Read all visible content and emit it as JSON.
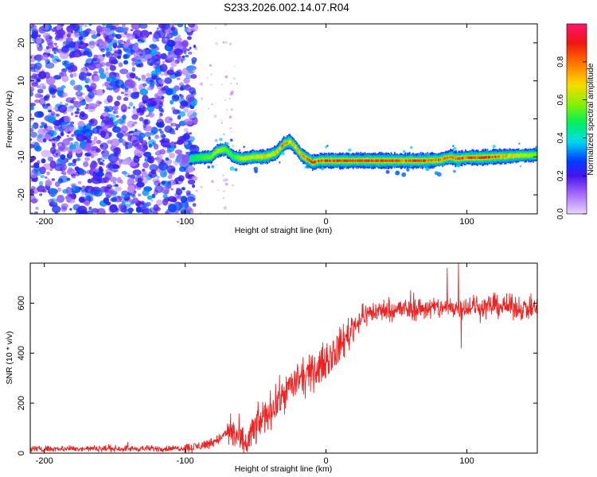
{
  "title": "S233.2026.002.14.07.R04",
  "colorbar": {
    "label": "Normalized spectral amplitude",
    "ticks": [
      0.0,
      0.2,
      0.4,
      0.6,
      0.8
    ],
    "tick_labels": [
      "0.0",
      "0.2",
      "0.4",
      "0.6",
      "0.8"
    ],
    "range": [
      0,
      1
    ],
    "colormap": "hsv-rainbow"
  },
  "chart_data": [
    {
      "type": "heatmap",
      "name": "spectrogram",
      "xlabel": "Height of straight line (km)",
      "ylabel": "Frequency (Hz)",
      "xlim": [
        -210,
        150
      ],
      "ylim": [
        -25,
        25
      ],
      "xticks": [
        -200,
        -100,
        0,
        100
      ],
      "xtick_labels": [
        "-200",
        "-100",
        "0",
        "100"
      ],
      "yticks": [
        -20,
        -10,
        0,
        10,
        20
      ],
      "ytick_labels": [
        "-20",
        "-10",
        "0",
        "10",
        "20"
      ],
      "noise_region_x": [
        -210,
        -93
      ],
      "noise_amplitude_range": [
        0.05,
        0.35
      ],
      "signal_track": {
        "x": [
          -97,
          -90,
          -82,
          -78,
          -72,
          -66,
          -60,
          -52,
          -44,
          -36,
          -30,
          -26,
          -22,
          -18,
          -14,
          -10,
          -5,
          0,
          10,
          20,
          30,
          40,
          50,
          55,
          60,
          70,
          80,
          88,
          92,
          100,
          110,
          120,
          130,
          140,
          150
        ],
        "freq": [
          -10.5,
          -10.2,
          -10.0,
          -8.5,
          -8.0,
          -10.0,
          -10.5,
          -10.0,
          -10.0,
          -9.0,
          -6.5,
          -6.0,
          -7.5,
          -9.5,
          -10.5,
          -11.5,
          -11.0,
          -11.0,
          -11.0,
          -11.0,
          -11.0,
          -11.0,
          -11.0,
          -11.0,
          -11.0,
          -11.0,
          -10.8,
          -10.0,
          -10.5,
          -10.2,
          -10.2,
          -10.0,
          -9.8,
          -9.6,
          -9.5
        ],
        "amplitude": [
          0.45,
          0.5,
          0.55,
          0.6,
          0.55,
          0.5,
          0.6,
          0.65,
          0.75,
          0.7,
          0.85,
          0.8,
          0.75,
          0.8,
          0.85,
          0.9,
          0.85,
          0.95,
          0.95,
          0.9,
          0.97,
          0.97,
          0.95,
          0.8,
          0.97,
          0.9,
          0.85,
          0.8,
          0.85,
          0.9,
          0.95,
          0.9,
          0.75,
          0.6,
          0.55
        ]
      }
    },
    {
      "type": "line",
      "name": "snr",
      "xlabel": "Height of straight line (km)",
      "ylabel": "SNR (10 * v/v)",
      "xlim": [
        -210,
        150
      ],
      "ylim": [
        0,
        760
      ],
      "xticks": [
        -200,
        -100,
        0,
        100
      ],
      "xtick_labels": [
        "-200",
        "-100",
        "0",
        "100"
      ],
      "yticks": [
        0,
        200,
        400,
        600
      ],
      "ytick_labels": [
        "0",
        "200",
        "400",
        "600"
      ],
      "color": "#ee2222",
      "trend": {
        "x": [
          -210,
          -110,
          -95,
          -85,
          -75,
          -68,
          -62,
          -58,
          -55,
          -50,
          -45,
          -40,
          -35,
          -30,
          -25,
          -20,
          -15,
          -10,
          -5,
          0,
          5,
          10,
          15,
          20,
          25,
          30,
          35,
          40,
          50,
          60,
          70,
          80,
          90,
          100,
          110,
          120,
          130,
          140,
          150
        ],
        "y": [
          18,
          18,
          22,
          35,
          60,
          90,
          60,
          20,
          60,
          100,
          140,
          170,
          200,
          240,
          270,
          290,
          300,
          320,
          340,
          370,
          400,
          430,
          470,
          510,
          540,
          560,
          565,
          570,
          575,
          575,
          580,
          580,
          585,
          585,
          585,
          590,
          585,
          580,
          575
        ]
      },
      "noise_amplitude": [
        {
          "x0": -210,
          "x1": -100,
          "amp": 12
        },
        {
          "x0": -100,
          "x1": -70,
          "amp": 20
        },
        {
          "x0": -70,
          "x1": 20,
          "amp": 70
        },
        {
          "x0": 20,
          "x1": 150,
          "amp": 45
        }
      ],
      "peaks": [
        {
          "x": 94,
          "y": 760
        },
        {
          "x": 86,
          "y": 740
        },
        {
          "x": 96,
          "y": 420
        }
      ]
    }
  ]
}
